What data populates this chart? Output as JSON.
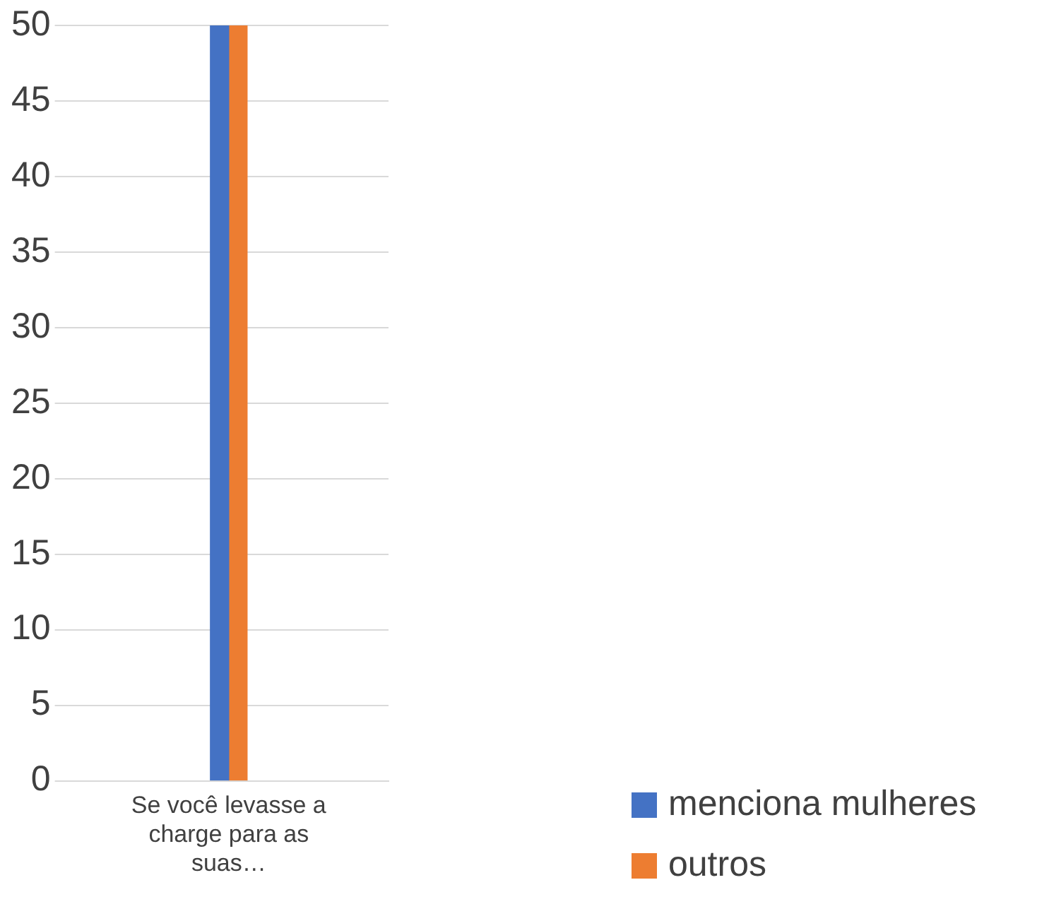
{
  "chart_data": {
    "type": "bar",
    "categories": [
      "Se você levasse a charge para as suas…"
    ],
    "series": [
      {
        "name": "menciona mulheres",
        "color": "#4472c4",
        "values": [
          50
        ]
      },
      {
        "name": "outros",
        "color": "#ed7d31",
        "values": [
          50
        ]
      }
    ],
    "ylim": [
      0,
      50
    ],
    "yticks": [
      0,
      5,
      10,
      15,
      20,
      25,
      30,
      35,
      40,
      45,
      50
    ],
    "grid": "y",
    "legend": "bottom right"
  }
}
